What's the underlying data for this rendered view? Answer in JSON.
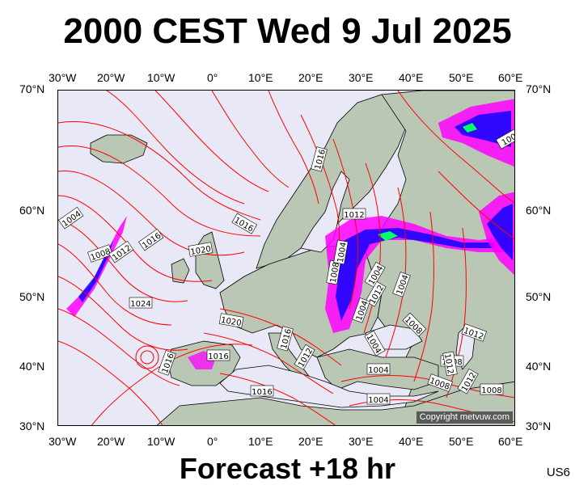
{
  "header": {
    "title": "2000 CEST Wed 9 Jul 2025"
  },
  "footer": {
    "subtitle": "Forecast +18 hr",
    "code": "US6"
  },
  "map": {
    "copyright": "Copyright metvuw.com",
    "lon_labels": [
      "30°W",
      "20°W",
      "10°W",
      "0°",
      "10°E",
      "20°E",
      "30°E",
      "40°E",
      "50°E",
      "60°E"
    ],
    "lat_labels": [
      "70°N",
      "60°N",
      "50°N",
      "40°N",
      "30°N"
    ],
    "isobar_labels": [
      "1004",
      "1008",
      "1012",
      "1016",
      "1020",
      "1024",
      "1016",
      "1020",
      "1016",
      "1016",
      "1012",
      "1008",
      "1004",
      "1004",
      "1012",
      "1016",
      "1004",
      "1008",
      "1004",
      "1016",
      "1016",
      "1012",
      "1004",
      "1004",
      "1008",
      "1004",
      "1008",
      "1012",
      "1012",
      "1012",
      "1008",
      "100"
    ],
    "colors": {
      "isobar": "#ff0000",
      "ocean": "#e8e8f6",
      "land": "#b9c7b4",
      "rain_light": "#ff00ff",
      "rain_mid": "#0000ff",
      "rain_heavy": "#00ff66"
    }
  }
}
